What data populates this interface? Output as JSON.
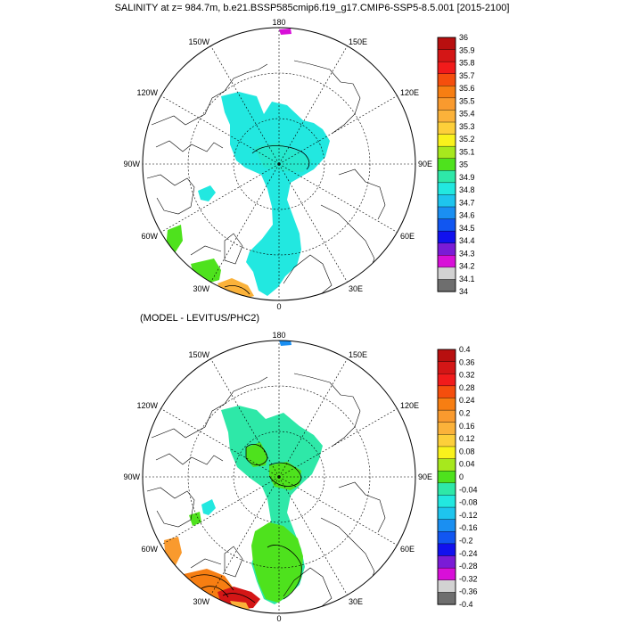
{
  "title": "SALINITY at z= 984.7m, b.e21.BSSP585cmip6.f19_g17.CMIP6-SSP5-8.5.001 [2015-2100]",
  "subtitle": "(MODEL - LEVITUS/PHC2)",
  "grid_labels": [
    "180",
    "150E",
    "120E",
    "90E",
    "60E",
    "30E",
    "0",
    "30W",
    "60W",
    "90W",
    "120W",
    "150W"
  ],
  "panels": [
    {
      "name": "salinity",
      "colorbar_labels": [
        "36",
        "35.9",
        "35.8",
        "35.7",
        "35.6",
        "35.5",
        "35.4",
        "35.3",
        "35.2",
        "35.1",
        "35",
        "34.9",
        "34.8",
        "34.7",
        "34.6",
        "34.5",
        "34.4",
        "34.3",
        "34.2",
        "34.1",
        "34"
      ],
      "colors": [
        "#b80f0f",
        "#d41616",
        "#f11b1b",
        "#f54e0d",
        "#f77e12",
        "#f99a2e",
        "#fbb23a",
        "#fdcf3a",
        "#f9f21c",
        "#a7e81d",
        "#4ee21d",
        "#2ee8a8",
        "#22e8e0",
        "#1ec5ee",
        "#1a8ff2",
        "#1156f1",
        "#1111ee",
        "#7a1bd6",
        "#d80fd8",
        "#d2d2d2",
        "#6e6e6e"
      ]
    },
    {
      "name": "difference",
      "colorbar_labels": [
        "0.4",
        "0.36",
        "0.32",
        "0.28",
        "0.24",
        "0.2",
        "0.16",
        "0.12",
        "0.08",
        "0.04",
        "0",
        "-0.04",
        "-0.08",
        "-0.12",
        "-0.16",
        "-0.2",
        "-0.24",
        "-0.28",
        "-0.32",
        "-0.36",
        "-0.4"
      ],
      "colors": [
        "#b80f0f",
        "#d41616",
        "#f11b1b",
        "#f54e0d",
        "#f77e12",
        "#f99a2e",
        "#fbb23a",
        "#fdcf3a",
        "#f9f21c",
        "#a7e81d",
        "#4ee21d",
        "#2ee8a8",
        "#22e8e0",
        "#1ec5ee",
        "#1a8ff2",
        "#1156f1",
        "#1111ee",
        "#7a1bd6",
        "#d80fd8",
        "#d2d2d2",
        "#6e6e6e"
      ]
    }
  ]
}
